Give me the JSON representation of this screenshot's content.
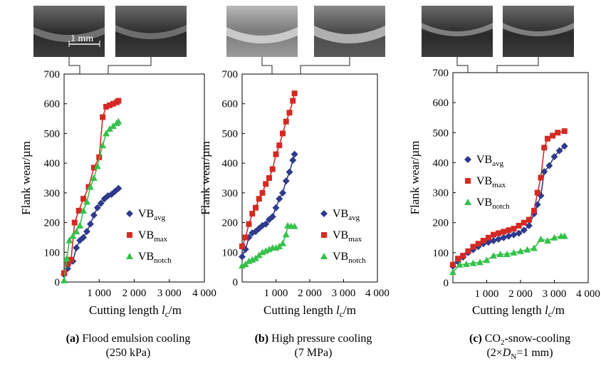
{
  "photo_scale_label": "1 mm",
  "chart_data": [
    {
      "type": "line",
      "ylabel": "Flank wear/µm",
      "xlabel_main": "Cutting length ",
      "xlabel_var": "l",
      "xlabel_sub": "c",
      "xlabel_unit": "/m",
      "ylim": [
        0,
        700
      ],
      "xlim": [
        0,
        4000
      ],
      "yticks": [
        "0",
        "100",
        "200",
        "300",
        "400",
        "500",
        "600",
        "700"
      ],
      "xticks": [
        "1 000",
        "2 000",
        "3 000",
        "4 000"
      ],
      "caption_letter": "(a)",
      "caption_line1": "Flood emulsion cooling",
      "caption_line2": "(250 kPa)",
      "series": [
        {
          "name": "VB",
          "sub": "avg",
          "color": "#2e3a8c",
          "marker": "diamond",
          "x": [
            0,
            100,
            250,
            350,
            450,
            550,
            650,
            750,
            850,
            950,
            1050,
            1150,
            1250,
            1350,
            1450,
            1550
          ],
          "y": [
            25,
            45,
            70,
            115,
            140,
            150,
            170,
            195,
            225,
            250,
            265,
            280,
            290,
            295,
            305,
            315
          ]
        },
        {
          "name": "VB",
          "sub": "max",
          "color": "#d42a24",
          "marker": "square",
          "x": [
            0,
            100,
            200,
            300,
            420,
            550,
            700,
            850,
            1000,
            1100,
            1200,
            1300,
            1400,
            1500,
            1550
          ],
          "y": [
            30,
            60,
            75,
            200,
            240,
            280,
            320,
            385,
            420,
            555,
            590,
            595,
            600,
            605,
            610
          ]
        },
        {
          "name": "VB",
          "sub": "notch",
          "color": "#35c14a",
          "marker": "triangle",
          "x": [
            0,
            80,
            150,
            250,
            350,
            450,
            550,
            650,
            750,
            850,
            950,
            1100,
            1200,
            1300,
            1400,
            1500,
            1550
          ],
          "y": [
            5,
            80,
            140,
            155,
            170,
            190,
            240,
            270,
            320,
            350,
            390,
            460,
            500,
            515,
            525,
            535,
            540
          ]
        }
      ]
    },
    {
      "type": "line",
      "ylabel": "Flank wear/µm",
      "xlabel_main": "Cutting length ",
      "xlabel_var": "l",
      "xlabel_sub": "c",
      "xlabel_unit": "/m",
      "ylim": [
        0,
        700
      ],
      "xlim": [
        0,
        4000
      ],
      "yticks": [
        "0",
        "100",
        "200",
        "300",
        "400",
        "500",
        "600",
        "700"
      ],
      "xticks": [
        "1 000",
        "2 000",
        "3 000",
        "4 000"
      ],
      "caption_letter": "(b)",
      "caption_line1": "High  pressure cooling",
      "caption_line2": "(7 MPa)",
      "series": [
        {
          "name": "VB",
          "sub": "avg",
          "color": "#2e3a8c",
          "marker": "diamond",
          "x": [
            0,
            100,
            200,
            300,
            400,
            500,
            600,
            700,
            800,
            900,
            1000,
            1100,
            1200,
            1300,
            1400,
            1500,
            1550
          ],
          "y": [
            85,
            110,
            150,
            165,
            170,
            180,
            190,
            195,
            210,
            220,
            250,
            280,
            300,
            340,
            370,
            410,
            430
          ]
        },
        {
          "name": "VB",
          "sub": "max",
          "color": "#d42a24",
          "marker": "square",
          "x": [
            0,
            100,
            200,
            300,
            400,
            500,
            600,
            700,
            800,
            900,
            1000,
            1100,
            1200,
            1300,
            1400,
            1500,
            1550
          ],
          "y": [
            120,
            150,
            195,
            230,
            250,
            280,
            300,
            330,
            350,
            380,
            430,
            460,
            500,
            540,
            570,
            610,
            635
          ]
        },
        {
          "name": "VB",
          "sub": "notch",
          "color": "#35c14a",
          "marker": "triangle",
          "x": [
            0,
            100,
            200,
            300,
            400,
            500,
            600,
            700,
            800,
            900,
            1000,
            1100,
            1200,
            1300,
            1350,
            1450,
            1550
          ],
          "y": [
            55,
            60,
            70,
            75,
            80,
            90,
            100,
            105,
            110,
            115,
            115,
            120,
            130,
            160,
            190,
            188,
            188
          ]
        }
      ]
    },
    {
      "type": "line",
      "ylabel": "Flank wear/µm",
      "xlabel_main": "Cutting length ",
      "xlabel_var": "l",
      "xlabel_sub": "c",
      "xlabel_unit": "/m",
      "ylim": [
        0,
        700
      ],
      "xlim": [
        0,
        4000
      ],
      "yticks": [
        "0",
        "100",
        "200",
        "300",
        "400",
        "500",
        "600",
        "700"
      ],
      "xticks": [
        "1 000",
        "2 000",
        "3 000",
        "4 000"
      ],
      "caption_letter": "(c)",
      "caption_line1_pre": "CO",
      "caption_line1_sub": "2",
      "caption_line1_post": "-snow-cooling",
      "caption_line2_pre": "(2×",
      "caption_line2_var": "D",
      "caption_line2_sub": "N",
      "caption_line2_post": "=1 mm)",
      "series": [
        {
          "name": "VB",
          "sub": "avg",
          "color": "#2e3a8c",
          "marker": "diamond",
          "x": [
            0,
            150,
            300,
            450,
            600,
            750,
            900,
            1050,
            1200,
            1350,
            1500,
            1650,
            1800,
            1950,
            2100,
            2250,
            2400,
            2500,
            2600,
            2700,
            2850,
            3000,
            3150,
            3300
          ],
          "y": [
            55,
            70,
            85,
            100,
            110,
            120,
            130,
            135,
            140,
            145,
            150,
            155,
            160,
            165,
            175,
            190,
            230,
            260,
            290,
            370,
            390,
            420,
            440,
            455
          ]
        },
        {
          "name": "VB",
          "sub": "max",
          "color": "#d42a24",
          "marker": "square",
          "x": [
            0,
            150,
            300,
            450,
            600,
            750,
            900,
            1050,
            1200,
            1350,
            1500,
            1650,
            1800,
            1950,
            2100,
            2250,
            2400,
            2500,
            2600,
            2700,
            2800,
            2950,
            3100,
            3300
          ],
          "y": [
            60,
            80,
            90,
            105,
            120,
            130,
            140,
            150,
            160,
            165,
            170,
            175,
            180,
            190,
            200,
            210,
            240,
            300,
            350,
            450,
            480,
            490,
            500,
            505
          ]
        },
        {
          "name": "VB",
          "sub": "notch",
          "color": "#35c14a",
          "marker": "triangle",
          "x": [
            0,
            200,
            400,
            600,
            800,
            1000,
            1200,
            1400,
            1600,
            1800,
            2000,
            2200,
            2400,
            2600,
            2800,
            3000,
            3200,
            3300
          ],
          "y": [
            35,
            60,
            62,
            65,
            68,
            75,
            90,
            95,
            95,
            100,
            105,
            110,
            115,
            145,
            140,
            150,
            155,
            155
          ]
        }
      ]
    }
  ]
}
